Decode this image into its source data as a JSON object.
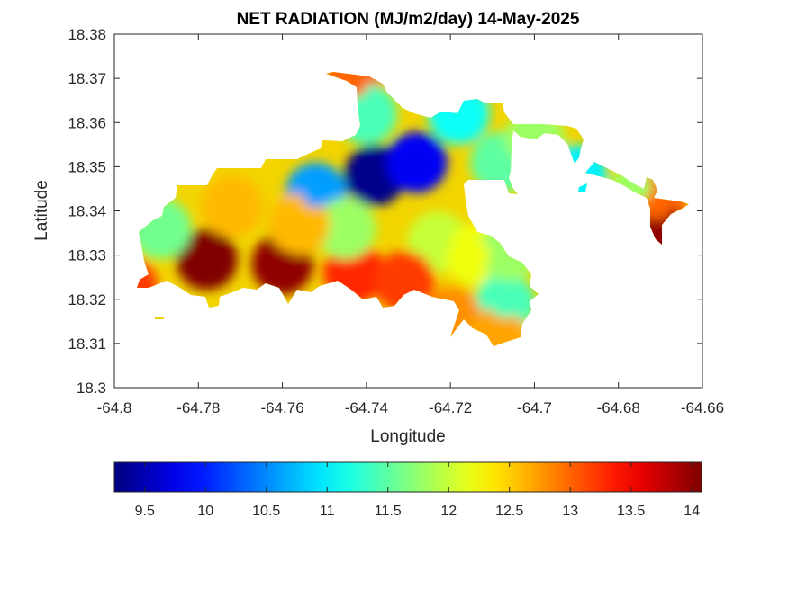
{
  "chart_data": {
    "type": "heatmap",
    "title": "NET RADIATION (MJ/m2/day) 14-May-2025",
    "xlabel": "Longitude",
    "ylabel": "Latitude",
    "xlim": [
      -64.8,
      -64.66
    ],
    "ylim": [
      18.3,
      18.38
    ],
    "x_ticks": [
      -64.8,
      -64.78,
      -64.76,
      -64.74,
      -64.72,
      -64.7,
      -64.68,
      -64.66
    ],
    "x_tick_labels": [
      "-64.8",
      "-64.78",
      "-64.76",
      "-64.74",
      "-64.72",
      "-64.7",
      "-64.68",
      "-64.66"
    ],
    "y_ticks": [
      18.3,
      18.31,
      18.32,
      18.33,
      18.34,
      18.35,
      18.36,
      18.37,
      18.38
    ],
    "y_tick_labels": [
      "18.3",
      "18.31",
      "18.32",
      "18.33",
      "18.34",
      "18.35",
      "18.36",
      "18.37",
      "18.38"
    ],
    "colormap": "jet",
    "colorbar": {
      "orientation": "horizontal",
      "location": "bottom",
      "range": [
        9.25,
        14.08
      ],
      "ticks": [
        9.5,
        10,
        10.5,
        11,
        11.5,
        12,
        12.5,
        13,
        13.5,
        14
      ],
      "tick_labels": [
        "9.5",
        "10",
        "10.5",
        "11",
        "11.5",
        "12",
        "12.5",
        "13",
        "13.5",
        "14"
      ]
    },
    "grid": false,
    "hotspots": [
      {
        "lon": -64.778,
        "lat": 18.329,
        "value": 14.1
      },
      {
        "lon": -64.76,
        "lat": 18.328,
        "value": 14.0
      },
      {
        "lon": -64.743,
        "lat": 18.326,
        "value": 13.3
      },
      {
        "lon": -64.797,
        "lat": 18.323,
        "value": 13.2
      },
      {
        "lon": -64.738,
        "lat": 18.348,
        "value": 9.3
      },
      {
        "lon": -64.728,
        "lat": 18.351,
        "value": 9.8
      },
      {
        "lon": -64.752,
        "lat": 18.344,
        "value": 10.6
      },
      {
        "lon": -64.745,
        "lat": 18.336,
        "value": 11.8
      },
      {
        "lon": -64.789,
        "lat": 18.336,
        "value": 11.6
      },
      {
        "lon": -64.723,
        "lat": 18.333,
        "value": 12.0
      },
      {
        "lon": -64.731,
        "lat": 18.324,
        "value": 13.2
      },
      {
        "lon": -64.714,
        "lat": 18.33,
        "value": 12.2
      },
      {
        "lon": -64.707,
        "lat": 18.319,
        "value": 11.4
      },
      {
        "lon": -64.706,
        "lat": 18.331,
        "value": 11.8
      },
      {
        "lon": -64.72,
        "lat": 18.316,
        "value": 12.8
      },
      {
        "lon": -64.709,
        "lat": 18.311,
        "value": 12.7
      },
      {
        "lon": -64.718,
        "lat": 18.362,
        "value": 11.1
      },
      {
        "lon": -64.708,
        "lat": 18.351,
        "value": 11.5
      },
      {
        "lon": -64.7,
        "lat": 18.356,
        "value": 11.8
      },
      {
        "lon": -64.69,
        "lat": 18.348,
        "value": 11.0
      },
      {
        "lon": -64.675,
        "lat": 18.344,
        "value": 11.8
      },
      {
        "lon": -64.671,
        "lat": 18.341,
        "value": 13.0
      },
      {
        "lon": -64.671,
        "lat": 18.335,
        "value": 14.0
      },
      {
        "lon": -64.743,
        "lat": 18.369,
        "value": 13.0
      },
      {
        "lon": -64.74,
        "lat": 18.362,
        "value": 11.4
      },
      {
        "lon": -64.772,
        "lat": 18.341,
        "value": 12.6
      },
      {
        "lon": -64.756,
        "lat": 18.337,
        "value": 12.6
      }
    ]
  }
}
